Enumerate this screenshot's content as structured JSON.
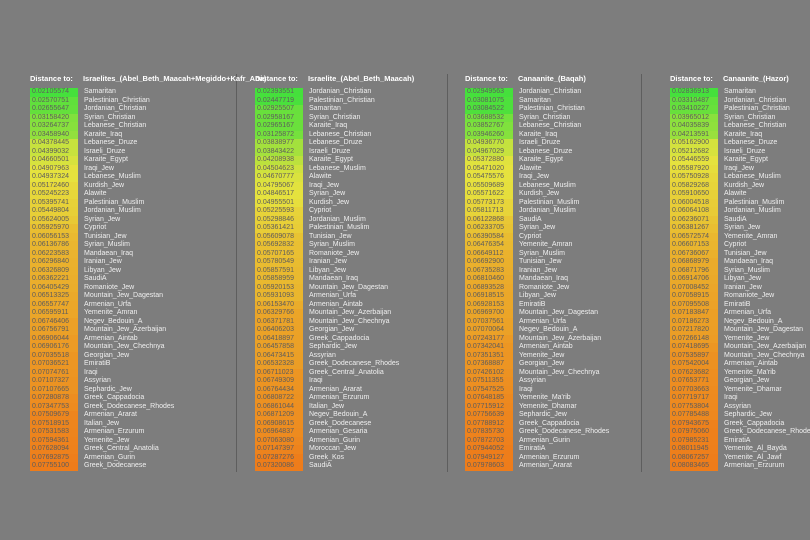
{
  "page": {
    "background_color": "#7d7d7d"
  },
  "color_scale": {
    "low": "#45e03c",
    "mid": "#e6e23e",
    "high": "#ee7c1a",
    "value_text": "#5d5d5d",
    "name_text": "#efefef",
    "header_text": "#ffffff",
    "separator": "#5e5e5e"
  },
  "columns": [
    {
      "header_label": "Distance to:",
      "target": "Israelites_(Abel_Beth_Maacah+Megiddo+Kafr_Ana)",
      "rows": [
        [
          "0.02105574",
          "Samaritan"
        ],
        [
          "0.02570751",
          "Palestinian_Christian"
        ],
        [
          "0.02655647",
          "Jordanian_Christian"
        ],
        [
          "0.03158420",
          "Syrian_Christian"
        ],
        [
          "0.03264737",
          "Lebanese_Christian"
        ],
        [
          "0.03458940",
          "Karaite_Iraq"
        ],
        [
          "0.04378445",
          "Lebanese_Druze"
        ],
        [
          "0.04399032",
          "Israeli_Druze"
        ],
        [
          "0.04660501",
          "Karaite_Egypt"
        ],
        [
          "0.04907963",
          "Iraqi_Jew"
        ],
        [
          "0.04937324",
          "Lebanese_Muslim"
        ],
        [
          "0.05172460",
          "Kurdish_Jew"
        ],
        [
          "0.05245223",
          "Alawite"
        ],
        [
          "0.05395741",
          "Palestinian_Muslim"
        ],
        [
          "0.05449804",
          "Jordanian_Muslim"
        ],
        [
          "0.05624005",
          "Syrian_Jew"
        ],
        [
          "0.05925970",
          "Cypriot"
        ],
        [
          "0.06056153",
          "Tunisian_Jew"
        ],
        [
          "0.06136786",
          "Syrian_Muslim"
        ],
        [
          "0.06223583",
          "Mandaean_Iraq"
        ],
        [
          "0.06296840",
          "Iranian_Jew"
        ],
        [
          "0.06326809",
          "Libyan_Jew"
        ],
        [
          "0.06362221",
          "SaudiA"
        ],
        [
          "0.06405429",
          "Romaniote_Jew"
        ],
        [
          "0.06513325",
          "Mountain_Jew_Dagestan"
        ],
        [
          "0.06557747",
          "Armenian_Urfa"
        ],
        [
          "0.06595911",
          "Yemenite_Amran"
        ],
        [
          "0.06746406",
          "Negev_Bedouin_A"
        ],
        [
          "0.06756791",
          "Mountain_Jew_Azerbaijan"
        ],
        [
          "0.06906044",
          "Armenian_Aintab"
        ],
        [
          "0.06906176",
          "Mountain_Jew_Chechnya"
        ],
        [
          "0.07035518",
          "Georgian_Jew"
        ],
        [
          "0.07036521",
          "EmiratiB"
        ],
        [
          "0.07074761",
          "Iraqi"
        ],
        [
          "0.07107327",
          "Assyrian"
        ],
        [
          "0.07107665",
          "Sephardic_Jew"
        ],
        [
          "0.07280878",
          "Greek_Cappadocia"
        ],
        [
          "0.07347753",
          "Greek_Dodecanese_Rhodes"
        ],
        [
          "0.07509679",
          "Armenian_Ararat"
        ],
        [
          "0.07518915",
          "Italian_Jew"
        ],
        [
          "0.07531583",
          "Armenian_Erzurum"
        ],
        [
          "0.07594361",
          "Yemenite_Jew"
        ],
        [
          "0.07628094",
          "Greek_Central_Anatolia"
        ],
        [
          "0.07692875",
          "Armenian_Gurin"
        ],
        [
          "0.07755100",
          "Greek_Dodecanese"
        ]
      ]
    },
    {
      "header_label": "Distance to:",
      "target": "Israelite_(Abel_Beth_Maacah)",
      "rows": [
        [
          "0.02393551",
          "Jordanian_Christian"
        ],
        [
          "0.02447719",
          "Palestinian_Christian"
        ],
        [
          "0.02925507",
          "Samaritan"
        ],
        [
          "0.02958167",
          "Syrian_Christian"
        ],
        [
          "0.02965167",
          "Karaite_Iraq"
        ],
        [
          "0.03125872",
          "Lebanese_Christian"
        ],
        [
          "0.03838977",
          "Lebanese_Druze"
        ],
        [
          "0.03843422",
          "Israeli_Druze"
        ],
        [
          "0.04208938",
          "Karaite_Egypt"
        ],
        [
          "0.04504623",
          "Lebanese_Muslim"
        ],
        [
          "0.04670777",
          "Alawite"
        ],
        [
          "0.04795067",
          "Iraqi_Jew"
        ],
        [
          "0.04846517",
          "Syrian_Jew"
        ],
        [
          "0.04955501",
          "Kurdish_Jew"
        ],
        [
          "0.05225593",
          "Cypriot"
        ],
        [
          "0.05298846",
          "Jordanian_Muslim"
        ],
        [
          "0.05361421",
          "Palestinian_Muslim"
        ],
        [
          "0.05609078",
          "Tunisian_Jew"
        ],
        [
          "0.05692832",
          "Syrian_Muslim"
        ],
        [
          "0.05707165",
          "Romaniote_Jew"
        ],
        [
          "0.05780549",
          "Iranian_Jew"
        ],
        [
          "0.05857591",
          "Libyan_Jew"
        ],
        [
          "0.05858959",
          "Mandaean_Iraq"
        ],
        [
          "0.05920153",
          "Mountain_Jew_Dagestan"
        ],
        [
          "0.05931093",
          "Armenian_Urfa"
        ],
        [
          "0.06153470",
          "Armenian_Aintab"
        ],
        [
          "0.06329766",
          "Mountain_Jew_Azerbaijan"
        ],
        [
          "0.06371781",
          "Mountain_Jew_Chechnya"
        ],
        [
          "0.06406203",
          "Georgian_Jew"
        ],
        [
          "0.06418897",
          "Greek_Cappadocia"
        ],
        [
          "0.06457858",
          "Sephardic_Jew"
        ],
        [
          "0.06473415",
          "Assyrian"
        ],
        [
          "0.06532328",
          "Greek_Dodecanese_Rhodes"
        ],
        [
          "0.06711023",
          "Greek_Central_Anatolia"
        ],
        [
          "0.06749309",
          "Iraqi"
        ],
        [
          "0.06764434",
          "Armenian_Ararat"
        ],
        [
          "0.06808722",
          "Armenian_Erzurum"
        ],
        [
          "0.06861044",
          "Italian_Jew"
        ],
        [
          "0.06871209",
          "Negev_Bedouin_A"
        ],
        [
          "0.06908615",
          "Greek_Dodecanese"
        ],
        [
          "0.06964837",
          "Armenian_Gesaria"
        ],
        [
          "0.07063080",
          "Armenian_Gurin"
        ],
        [
          "0.07147397",
          "Moroccan_Jew"
        ],
        [
          "0.07287276",
          "Greek_Kos"
        ],
        [
          "0.07320086",
          "SaudiA"
        ]
      ]
    },
    {
      "header_label": "Distance to:",
      "target": "Canaanite_(Baqah)",
      "rows": [
        [
          "0.02949563",
          "Jordanian_Christian"
        ],
        [
          "0.03081075",
          "Samaritan"
        ],
        [
          "0.03084522",
          "Palestinian_Christian"
        ],
        [
          "0.03688532",
          "Syrian_Christian"
        ],
        [
          "0.03852767",
          "Lebanese_Christian"
        ],
        [
          "0.03946260",
          "Karaite_Iraq"
        ],
        [
          "0.04936770",
          "Israeli_Druze"
        ],
        [
          "0.04967029",
          "Lebanese_Druze"
        ],
        [
          "0.05372880",
          "Karaite_Egypt"
        ],
        [
          "0.05471020",
          "Alawite"
        ],
        [
          "0.05475576",
          "Iraqi_Jew"
        ],
        [
          "0.05509689",
          "Lebanese_Muslim"
        ],
        [
          "0.05571622",
          "Kurdish_Jew"
        ],
        [
          "0.05773173",
          "Palestinian_Muslim"
        ],
        [
          "0.05811713",
          "Jordanian_Muslim"
        ],
        [
          "0.06122868",
          "SaudiA"
        ],
        [
          "0.06233705",
          "Syrian_Jew"
        ],
        [
          "0.06390584",
          "Cypriot"
        ],
        [
          "0.06476354",
          "Yemenite_Amran"
        ],
        [
          "0.06649112",
          "Syrian_Muslim"
        ],
        [
          "0.06692900",
          "Tunisian_Jew"
        ],
        [
          "0.06735283",
          "Iranian_Jew"
        ],
        [
          "0.06810460",
          "Mandaean_Iraq"
        ],
        [
          "0.06893528",
          "Romaniote_Jew"
        ],
        [
          "0.06918515",
          "Libyan_Jew"
        ],
        [
          "0.06928153",
          "EmiratiB"
        ],
        [
          "0.06969700",
          "Mountain_Jew_Dagestan"
        ],
        [
          "0.07037561",
          "Armenian_Urfa"
        ],
        [
          "0.07070064",
          "Negev_Bedouin_A"
        ],
        [
          "0.07243177",
          "Mountain_Jew_Azerbaijan"
        ],
        [
          "0.07342041",
          "Armenian_Aintab"
        ],
        [
          "0.07351351",
          "Yemenite_Jew"
        ],
        [
          "0.07368887",
          "Georgian_Jew"
        ],
        [
          "0.07426102",
          "Mountain_Jew_Chechnya"
        ],
        [
          "0.07511355",
          "Assyrian"
        ],
        [
          "0.07547525",
          "Iraqi"
        ],
        [
          "0.07648185",
          "Yemenite_Ma'rib"
        ],
        [
          "0.07715912",
          "Yemenite_Dhamar"
        ],
        [
          "0.07756639",
          "Sephardic_Jew"
        ],
        [
          "0.07788912",
          "Greek_Cappadocia"
        ],
        [
          "0.07835730",
          "Greek_Dodecanese_Rhodes"
        ],
        [
          "0.07872703",
          "Armenian_Gurin"
        ],
        [
          "0.07944052",
          "EmiratiA"
        ],
        [
          "0.07949127",
          "Armenian_Erzurum"
        ],
        [
          "0.07978603",
          "Armenian_Ararat"
        ]
      ]
    },
    {
      "header_label": "Distance to:",
      "target": "Canaanite_(Hazor)",
      "rows": [
        [
          "0.02836913",
          "Samaritan"
        ],
        [
          "0.03310487",
          "Jordanian_Christian"
        ],
        [
          "0.03410227",
          "Palestinian_Christian"
        ],
        [
          "0.03965012",
          "Syrian_Christian"
        ],
        [
          "0.04035839",
          "Lebanese_Christian"
        ],
        [
          "0.04213591",
          "Karaite_Iraq"
        ],
        [
          "0.05162900",
          "Lebanese_Druze"
        ],
        [
          "0.05212682",
          "Israeli_Druze"
        ],
        [
          "0.05446559",
          "Karaite_Egypt"
        ],
        [
          "0.05587920",
          "Iraqi_Jew"
        ],
        [
          "0.05750928",
          "Lebanese_Muslim"
        ],
        [
          "0.05829268",
          "Kurdish_Jew"
        ],
        [
          "0.05910650",
          "Alawite"
        ],
        [
          "0.06004518",
          "Palestinian_Muslim"
        ],
        [
          "0.06064108",
          "Jordanian_Muslim"
        ],
        [
          "0.06236071",
          "SaudiA"
        ],
        [
          "0.06381267",
          "Syrian_Jew"
        ],
        [
          "0.06572574",
          "Yemenite_Amran"
        ],
        [
          "0.06607153",
          "Cypriot"
        ],
        [
          "0.06736067",
          "Tunisian_Jew"
        ],
        [
          "0.06868979",
          "Mandaean_Iraq"
        ],
        [
          "0.06871796",
          "Syrian_Muslim"
        ],
        [
          "0.06914706",
          "Libyan_Jew"
        ],
        [
          "0.07008452",
          "Iranian_Jew"
        ],
        [
          "0.07058915",
          "Romaniote_Jew"
        ],
        [
          "0.07095508",
          "EmiratiB"
        ],
        [
          "0.07183847",
          "Armenian_Urfa"
        ],
        [
          "0.07186273",
          "Negev_Bedouin_A"
        ],
        [
          "0.07217820",
          "Mountain_Jew_Dagestan"
        ],
        [
          "0.07266148",
          "Yemenite_Jew"
        ],
        [
          "0.07418695",
          "Mountain_Jew_Azerbaijan"
        ],
        [
          "0.07535897",
          "Mountain_Jew_Chechnya"
        ],
        [
          "0.07542004",
          "Armenian_Aintab"
        ],
        [
          "0.07623682",
          "Yemenite_Ma'rib"
        ],
        [
          "0.07653771",
          "Georgian_Jew"
        ],
        [
          "0.07703663",
          "Yemenite_Dhamar"
        ],
        [
          "0.07719717",
          "Iraqi"
        ],
        [
          "0.07753804",
          "Assyrian"
        ],
        [
          "0.07785488",
          "Sephardic_Jew"
        ],
        [
          "0.07943675",
          "Greek_Cappadocia"
        ],
        [
          "0.07975060",
          "Greek_Dodecanese_Rhodes"
        ],
        [
          "0.07985231",
          "EmiratiA"
        ],
        [
          "0.08011945",
          "Yemenite_Al_Bayda"
        ],
        [
          "0.08067257",
          "Yemenite_Al_Jawf"
        ],
        [
          "0.08083465",
          "Armenian_Erzurum"
        ]
      ]
    }
  ]
}
